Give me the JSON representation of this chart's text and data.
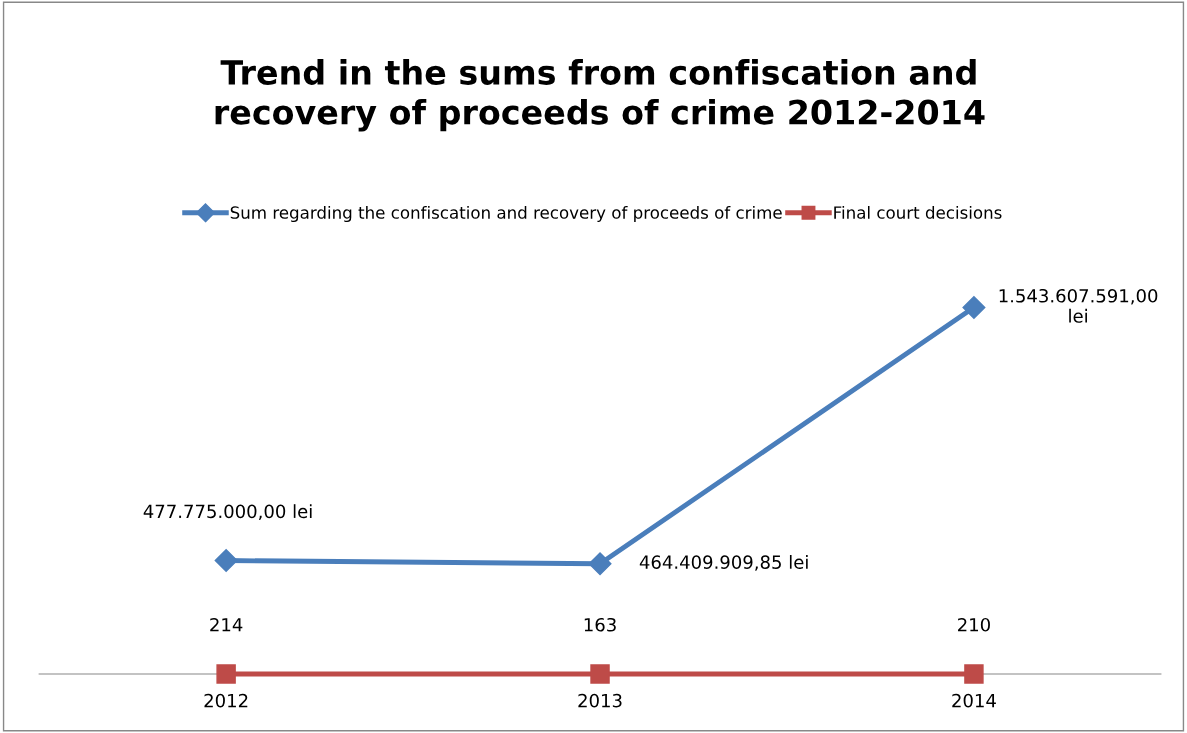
{
  "chart_data": {
    "type": "line",
    "title": "Trend in the sums from confiscation and\nrecovery of proceeds of crime 2012-2014",
    "categories": [
      "2012",
      "2013",
      "2014"
    ],
    "legend": "top",
    "grid": false,
    "series": [
      {
        "name": "Sum regarding the confiscation and recovery of proceeds of crime",
        "color": "#4a7ebb",
        "marker": "diamond",
        "values": [
          477775000.0,
          464409909.85,
          1543607591.0
        ],
        "value_labels": [
          "477.775.000,00 lei",
          "464.409.909,85 lei",
          "1.543.607.591,00\nlei"
        ]
      },
      {
        "name": "Final court decisions",
        "color": "#be4b48",
        "marker": "square",
        "values": [
          214,
          163,
          210
        ],
        "value_labels": [
          "214",
          "163",
          "210"
        ]
      }
    ],
    "relative": false
  }
}
